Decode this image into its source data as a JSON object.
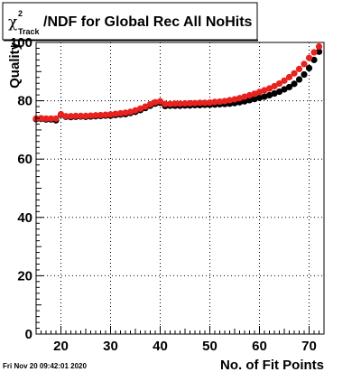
{
  "title": {
    "symbol": "χ",
    "superscript": "2",
    "subscript": "Track",
    "text": "/NDF for Global Rec All NoHits"
  },
  "timestamp": "Fri Nov 20 09:42:01 2020",
  "chart_data": {
    "type": "scatter",
    "xlabel": "No. of Fit Points",
    "ylabel": "Quality",
    "xlim": [
      15,
      73
    ],
    "ylim": [
      0,
      100
    ],
    "x_ticks": [
      20,
      30,
      40,
      50,
      60,
      70
    ],
    "y_ticks": [
      0,
      20,
      40,
      60,
      80,
      100
    ],
    "grid": true,
    "colors": {
      "series1": "#000000",
      "series2": "#e8221f"
    },
    "series": [
      {
        "color": "#000000",
        "x": [
          15,
          16,
          17,
          18,
          19,
          20,
          21,
          22,
          23,
          24,
          25,
          26,
          27,
          28,
          29,
          30,
          31,
          32,
          33,
          34,
          35,
          36,
          37,
          38,
          39,
          40,
          41,
          42,
          43,
          44,
          45,
          46,
          47,
          48,
          49,
          50,
          51,
          52,
          53,
          54,
          55,
          56,
          57,
          58,
          59,
          60,
          61,
          62,
          63,
          64,
          65,
          66,
          67,
          68,
          69,
          70,
          71,
          72
        ],
        "y": [
          73.7,
          73.8,
          73.6,
          73.6,
          73.3,
          75.2,
          74.5,
          74.4,
          74.5,
          74.6,
          74.5,
          74.6,
          74.7,
          74.8,
          74.9,
          74.9,
          75.1,
          75.3,
          75.4,
          75.8,
          76.2,
          76.8,
          77.5,
          78.3,
          79.0,
          79.3,
          78.2,
          78.3,
          78.3,
          78.3,
          78.4,
          78.4,
          78.5,
          78.5,
          78.6,
          78.6,
          78.7,
          78.8,
          78.9,
          79.0,
          79.2,
          79.5,
          79.8,
          80.2,
          80.6,
          81.0,
          81.4,
          81.9,
          82.5,
          83.1,
          83.9,
          84.7,
          85.8,
          87.3,
          89.0,
          91.2,
          94.0,
          96.8
        ]
      },
      {
        "color": "#e8221f",
        "x": [
          15,
          16,
          17,
          18,
          19,
          20,
          21,
          22,
          23,
          24,
          25,
          26,
          27,
          28,
          29,
          30,
          31,
          32,
          33,
          34,
          35,
          36,
          37,
          38,
          39,
          40,
          41,
          42,
          43,
          44,
          45,
          46,
          47,
          48,
          49,
          50,
          51,
          52,
          53,
          54,
          55,
          56,
          57,
          58,
          59,
          60,
          61,
          62,
          63,
          64,
          65,
          66,
          67,
          68,
          69,
          70,
          71,
          72
        ],
        "y": [
          73.9,
          74.0,
          73.9,
          73.9,
          73.9,
          75.4,
          74.7,
          74.7,
          74.8,
          74.8,
          74.8,
          74.9,
          75.0,
          75.1,
          75.2,
          75.3,
          75.5,
          75.7,
          75.9,
          76.2,
          76.7,
          77.3,
          78.0,
          78.8,
          79.5,
          79.8,
          78.9,
          78.9,
          79.0,
          79.0,
          79.1,
          79.1,
          79.2,
          79.3,
          79.3,
          79.4,
          79.6,
          79.7,
          79.9,
          80.2,
          80.5,
          80.9,
          81.4,
          81.9,
          82.4,
          83.0,
          83.6,
          84.2,
          85.0,
          85.9,
          86.9,
          88.1,
          89.4,
          90.9,
          92.6,
          94.7,
          96.6,
          98.6
        ]
      }
    ]
  }
}
